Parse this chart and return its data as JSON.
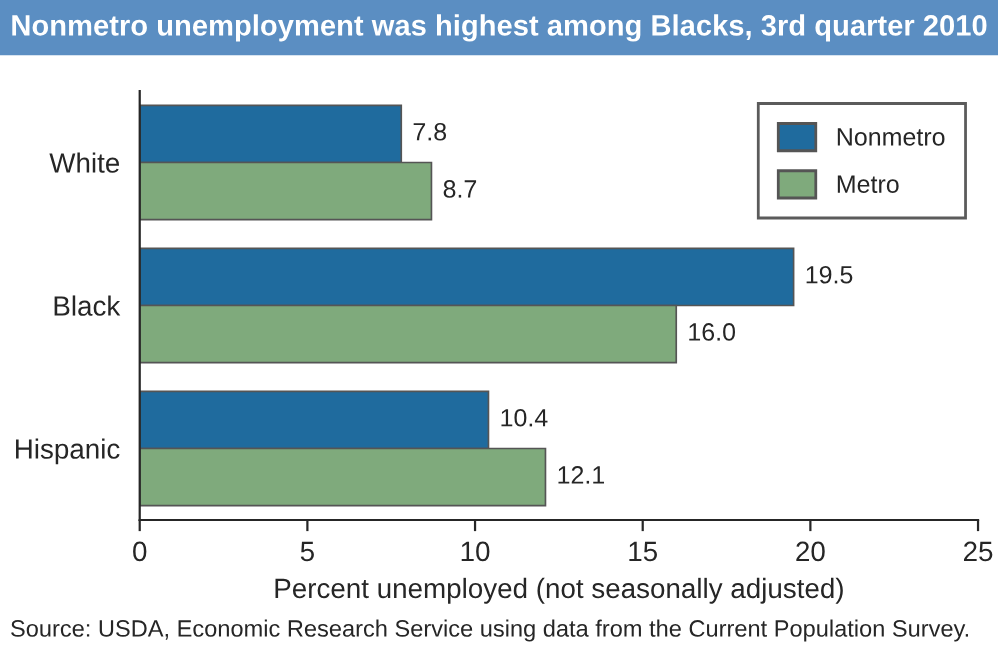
{
  "chart_data": {
    "type": "bar",
    "orientation": "horizontal",
    "title": "Nonmetro unemployment was highest among Blacks, 3rd quarter 2010",
    "categories": [
      "White",
      "Black",
      "Hispanic"
    ],
    "series": [
      {
        "name": "Nonmetro",
        "color": "#1f6b9e",
        "values": [
          7.8,
          19.5,
          10.4
        ]
      },
      {
        "name": "Metro",
        "color": "#7faa7c",
        "values": [
          8.7,
          16.0,
          12.1
        ]
      }
    ],
    "xlabel": "Percent unemployed (not seasonally adjusted)",
    "xlim": [
      0,
      25
    ],
    "xticks": [
      0,
      5,
      10,
      15,
      20,
      25
    ],
    "value_labels": [
      [
        "7.8",
        "19.5",
        "10.4"
      ],
      [
        "8.7",
        "16.0",
        "12.1"
      ]
    ],
    "legend": "top right",
    "grid": false,
    "annotations": [
      "Source: USDA, Economic Research Service using data from the Current Population Survey."
    ]
  }
}
